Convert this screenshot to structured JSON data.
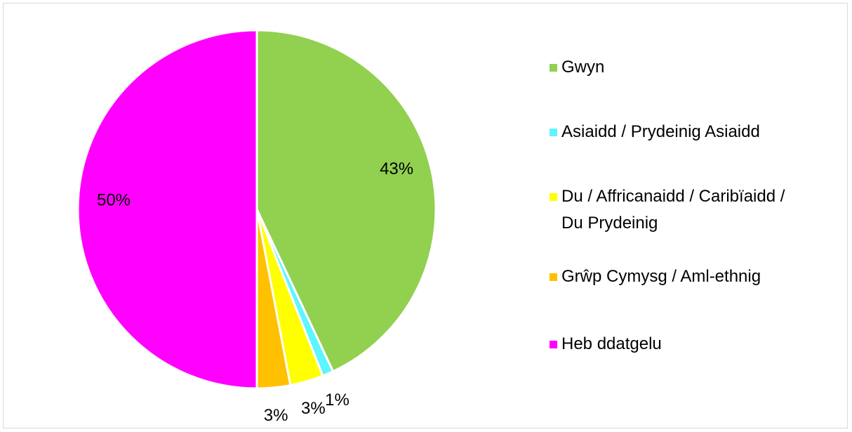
{
  "chart_data": {
    "type": "pie",
    "categories": [
      "Gwyn",
      "Asiaidd / Prydeinig Asiaidd",
      "Du / Affricanaidd / Caribïaidd / Du Prydeinig",
      "Grŵp Cymysg / Aml-ethnig",
      "Heb ddatgelu"
    ],
    "values": [
      43,
      1,
      3,
      3,
      50
    ],
    "value_labels": [
      "43%",
      "1%",
      "3%",
      "3%",
      "50%"
    ],
    "colors": [
      "#92d050",
      "#5ff5ff",
      "#ffff00",
      "#ffc000",
      "#ff00ff"
    ],
    "legend": "right"
  }
}
